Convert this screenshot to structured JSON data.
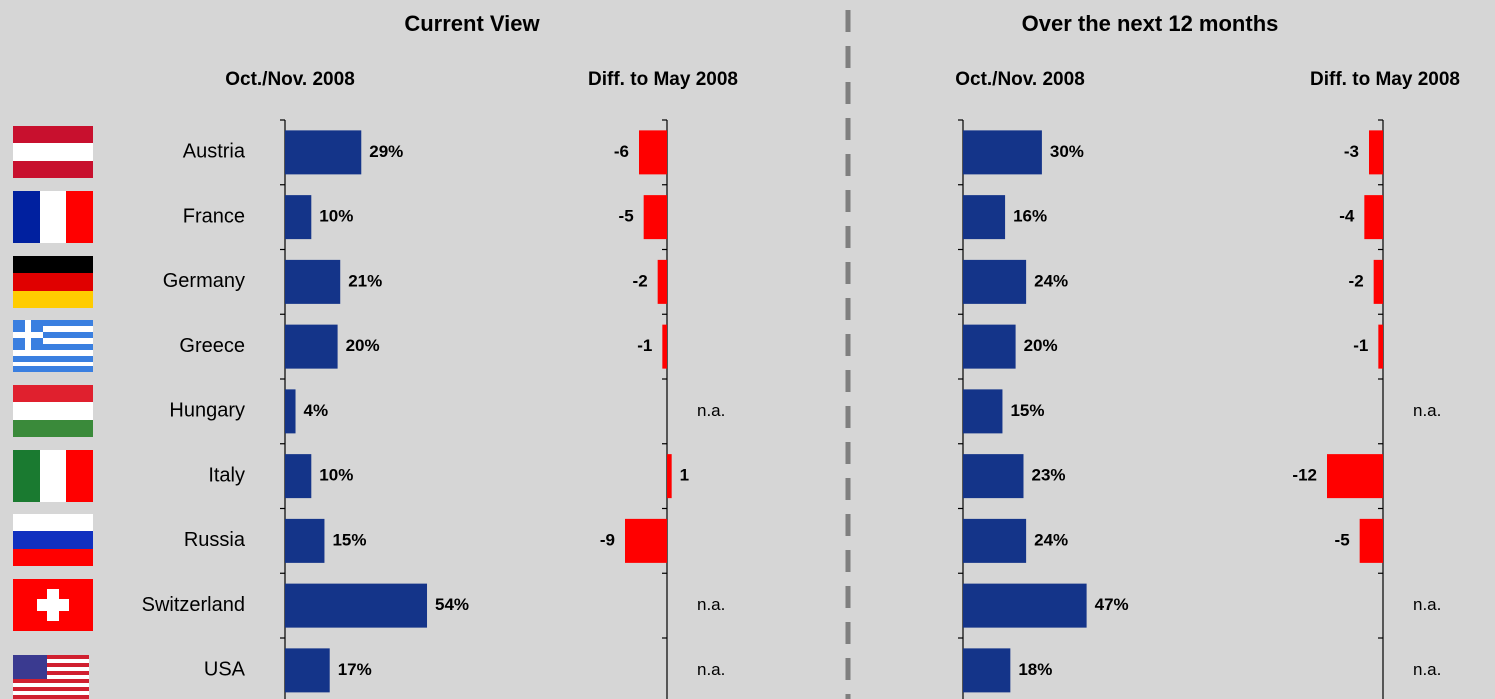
{
  "sections": [
    {
      "title": "Current View"
    },
    {
      "title": "Over the next 12 months"
    }
  ],
  "categories": [
    "Austria",
    "France",
    "Germany",
    "Greece",
    "Hungary",
    "Italy",
    "Russia",
    "Switzerland",
    "USA"
  ],
  "chart_data": [
    {
      "type": "bar",
      "orientation": "horizontal",
      "title": "Oct./Nov. 2008",
      "color": "#143489",
      "xlim": [
        0,
        100
      ],
      "values": [
        29,
        10,
        21,
        20,
        4,
        10,
        15,
        54,
        17
      ],
      "value_labels": [
        "29%",
        "10%",
        "21%",
        "20%",
        "4%",
        "10%",
        "15%",
        "54%",
        "17%"
      ]
    },
    {
      "type": "bar",
      "orientation": "horizontal",
      "title": "Diff. to May 2008",
      "color": "#ff0000",
      "xlim": [
        -12,
        12
      ],
      "values": [
        -6,
        -5,
        -2,
        -1,
        null,
        1,
        -9,
        null,
        null
      ],
      "value_labels": [
        "-6",
        "-5",
        "-2",
        "-1",
        "n.a.",
        "1",
        "-9",
        "n.a.",
        "n.a."
      ]
    },
    {
      "type": "bar",
      "orientation": "horizontal",
      "title": "Oct./Nov. 2008",
      "color": "#143489",
      "xlim": [
        0,
        100
      ],
      "values": [
        30,
        16,
        24,
        20,
        15,
        23,
        24,
        47,
        18
      ],
      "value_labels": [
        "30%",
        "16%",
        "24%",
        "20%",
        "15%",
        "23%",
        "24%",
        "47%",
        "18%"
      ]
    },
    {
      "type": "bar",
      "orientation": "horizontal",
      "title": "Diff. to May 2008",
      "color": "#ff0000",
      "xlim": [
        -12,
        12
      ],
      "values": [
        -3,
        -4,
        -2,
        -1,
        null,
        -12,
        -5,
        null,
        null
      ],
      "value_labels": [
        "-3",
        "-4",
        "-2",
        "-1",
        "n.a.",
        "-12",
        "-5",
        "n.a.",
        "n.a."
      ]
    }
  ]
}
